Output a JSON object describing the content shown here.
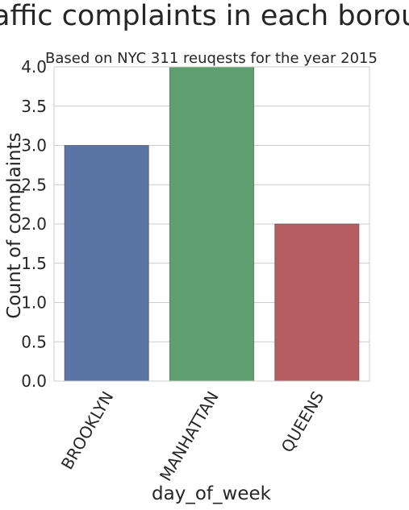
{
  "chart_data": {
    "type": "bar",
    "title": "Traffic complaints in each borough",
    "subtitle": "Based on NYC 311 reuqests for the year 2015",
    "xlabel": "day_of_week",
    "ylabel": "Count of complaints",
    "categories": [
      "BROOKLYN",
      "MANHATTAN",
      "QUEENS"
    ],
    "values": [
      3,
      4,
      2
    ],
    "ylim": [
      0,
      4
    ],
    "yticks": [
      "0.0",
      "0.5",
      "1.0",
      "1.5",
      "2.0",
      "2.5",
      "3.0",
      "3.5",
      "4.0"
    ],
    "grid": true,
    "legend": "none",
    "colors": [
      "#5875a4",
      "#5f9e6e",
      "#b55d60"
    ],
    "grid_color": "#cccccc",
    "frame_color": "#cccccc"
  }
}
